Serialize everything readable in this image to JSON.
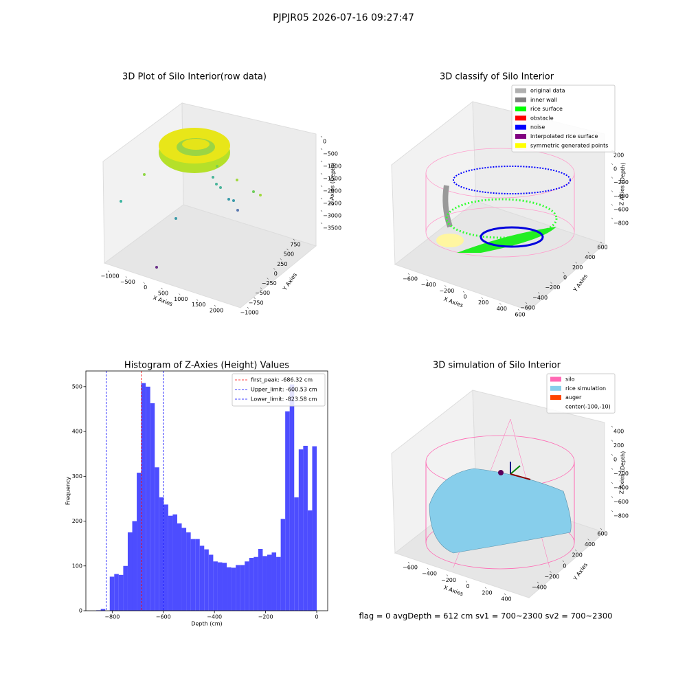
{
  "title": "PJPJR05 2026-07-16 09:27:47",
  "chart_data": [
    {
      "type": "scatter3d",
      "title": "3D Plot of Silo Interior(row data)",
      "xlabel": "X Axies",
      "ylabel": "Y Axies",
      "zlabel": "Z Axies (Depth)",
      "xticks": [
        {
          "value": -1000,
          "label": "−1000"
        },
        {
          "value": -500,
          "label": "−500"
        },
        0,
        500,
        1000,
        1500,
        2000
      ],
      "yticks": [
        {
          "value": -1000,
          "label": "−1000"
        },
        {
          "value": -750,
          "label": "−750"
        },
        {
          "value": -500,
          "label": "−500"
        },
        {
          "value": -250,
          "label": "−250"
        },
        0,
        250,
        500,
        750
      ],
      "zticks": [
        0,
        {
          "value": -500,
          "label": "−500"
        },
        {
          "value": -1000,
          "label": "−1000"
        },
        {
          "value": -1500,
          "label": "−1500"
        },
        {
          "value": -2000,
          "label": "−2000"
        },
        {
          "value": -2500,
          "label": "−2500"
        },
        {
          "value": -3000,
          "label": "−3000"
        },
        {
          "value": -3500,
          "label": "−3500"
        }
      ]
    },
    {
      "type": "scatter3d",
      "title": "3D classify of Silo Interior",
      "xlabel": "X Axies",
      "ylabel": "Y Axies",
      "zlabel": "Z Axies (Depth)",
      "xticks": [
        {
          "value": -600,
          "label": "−600"
        },
        {
          "value": -400,
          "label": "−400"
        },
        {
          "value": -200,
          "label": "−200"
        },
        0,
        200,
        400,
        600
      ],
      "yticks": [
        {
          "value": -600,
          "label": "−600"
        },
        {
          "value": -400,
          "label": "−400"
        },
        {
          "value": -200,
          "label": "−200"
        },
        0,
        200,
        400,
        600
      ],
      "zticks": [
        200,
        0,
        {
          "value": -200,
          "label": "−200"
        },
        {
          "value": -400,
          "label": "−400"
        },
        {
          "value": -600,
          "label": "−600"
        },
        {
          "value": -800,
          "label": "−800"
        }
      ],
      "legend": [
        {
          "name": "original data",
          "color": "#b0b0b0"
        },
        {
          "name": "inner wall",
          "color": "#808080"
        },
        {
          "name": "rice surface",
          "color": "#00ff00"
        },
        {
          "name": "obstacle",
          "color": "#ff0000"
        },
        {
          "name": "noise",
          "color": "#0000ff"
        },
        {
          "name": "interpolated rice surface",
          "color": "#800080"
        },
        {
          "name": "symmetric generated points",
          "color": "#ffff00"
        }
      ]
    },
    {
      "type": "histogram",
      "title": "Histogram of Z-Axies (Height) Values",
      "xlabel": "Depth (cm)",
      "ylabel": "Frequency",
      "color": "#4d4dff",
      "bins": [
        -880,
        -862.4,
        -844.8,
        -827.2,
        -809.6,
        -792,
        -774.4,
        -756.8,
        -739.2,
        -721.6,
        -704,
        -686.4,
        -668.8,
        -651.2,
        -633.6,
        -616,
        -598.4,
        -580.8,
        -563.2,
        -545.6,
        -528,
        -510.4,
        -492.8,
        -475.2,
        -457.6,
        -440,
        -422.4,
        -404.8,
        -387.2,
        -369.6,
        -352,
        -334.4,
        -316.8,
        -299.2,
        -281.6,
        -264,
        -246.4,
        -228.8,
        -211.2,
        -193.6,
        -176,
        -158.4,
        -140.8,
        -123.2,
        -105.6,
        -88,
        -70.4,
        -52.8,
        -35.2,
        -17.6,
        0
      ],
      "counts": [
        0,
        1,
        4,
        0,
        76,
        82,
        80,
        100,
        175,
        200,
        308,
        508,
        500,
        463,
        320,
        253,
        237,
        212,
        215,
        195,
        185,
        175,
        160,
        160,
        145,
        137,
        125,
        110,
        108,
        107,
        97,
        96,
        102,
        102,
        110,
        118,
        120,
        138,
        122,
        125,
        130,
        120,
        205,
        445,
        505,
        253,
        360,
        368,
        224,
        367
      ],
      "xlim": [
        -903,
        43
      ],
      "ylim": [
        0,
        535
      ],
      "xticks": [
        {
          "value": -800,
          "label": "−800"
        },
        {
          "value": -600,
          "label": "−600"
        },
        {
          "value": -400,
          "label": "−400"
        },
        {
          "value": -200,
          "label": "−200"
        },
        0
      ],
      "yticks": [
        0,
        100,
        200,
        300,
        400,
        500
      ],
      "lines": [
        {
          "name": "first_peak: -686.32 cm",
          "value": -686.32,
          "color": "#ff0000"
        },
        {
          "name": "Upper_limit: -600.53 cm",
          "value": -600.53,
          "color": "#0000ff"
        },
        {
          "name": "Lower_limit: -823.58 cm",
          "value": -823.58,
          "color": "#0000ff"
        }
      ],
      "legend": "upper right"
    },
    {
      "type": "surface3d",
      "title": "3D simulation of Silo Interior",
      "xlabel": "X Axies",
      "ylabel": "Y Axies",
      "zlabel": "Z Axies (Depth)",
      "xticks": [
        {
          "value": -600,
          "label": "−600"
        },
        {
          "value": -400,
          "label": "−400"
        },
        {
          "value": -200,
          "label": "−200"
        },
        0,
        200,
        400
      ],
      "yticks": [
        {
          "value": -400,
          "label": "−400"
        },
        {
          "value": -200,
          "label": "−200"
        },
        0,
        200,
        400,
        600
      ],
      "zticks": [
        400,
        200,
        0,
        {
          "value": -200,
          "label": "−200"
        },
        {
          "value": -400,
          "label": "−400"
        },
        {
          "value": -600,
          "label": "−600"
        },
        {
          "value": -800,
          "label": "−800"
        }
      ],
      "legend": [
        {
          "name": "silo",
          "color": "#ff69b4"
        },
        {
          "name": "rice simulation",
          "color": "#87ceeb"
        },
        {
          "name": "auger",
          "color": "#ff4500"
        },
        {
          "name": "center(-100,-10)",
          "color": null
        }
      ]
    }
  ],
  "footer": "flag = 0     avgDepth = 612 cm  sv1 = 700~2300  sv2 = 700~2300"
}
